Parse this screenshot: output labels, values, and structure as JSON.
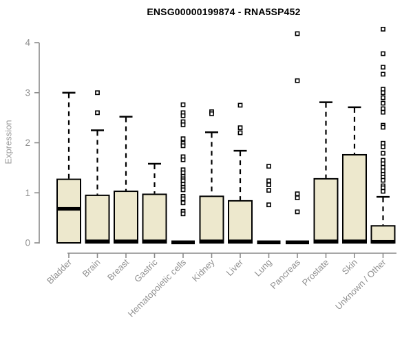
{
  "chart_data": {
    "type": "boxplot",
    "title": "ENSG00000199874 - RNA5SP452",
    "ylabel": "Expression",
    "xlabel": "",
    "ylim": [
      0,
      4.35
    ],
    "yticks": [
      0,
      1,
      2,
      3,
      4
    ],
    "grid": false,
    "legend": "none",
    "categories": [
      "Bladder",
      "Brain",
      "Breast",
      "Gastric",
      "Hematopoietic cells",
      "Kidney",
      "Liver",
      "Lung",
      "Pancreas",
      "Prostate",
      "Skin",
      "Unknown / Other"
    ],
    "boxes": [
      {
        "category": "Bladder",
        "q1": 0,
        "median": 0.68,
        "q3": 1.27,
        "whisker_low": 0,
        "whisker_high": 3.0,
        "outliers": []
      },
      {
        "category": "Brain",
        "q1": 0,
        "median": 0.03,
        "q3": 0.95,
        "whisker_low": 0,
        "whisker_high": 2.25,
        "outliers": [
          3.0,
          2.6
        ]
      },
      {
        "category": "Breast",
        "q1": 0,
        "median": 0.03,
        "q3": 1.03,
        "whisker_low": 0,
        "whisker_high": 2.52,
        "outliers": []
      },
      {
        "category": "Gastric",
        "q1": 0,
        "median": 0.03,
        "q3": 0.97,
        "whisker_low": 0,
        "whisker_high": 1.58,
        "outliers": []
      },
      {
        "category": "Hematopoietic cells",
        "q1": 0,
        "median": 0.01,
        "q3": 0.02,
        "whisker_low": 0,
        "whisker_high": 0.02,
        "outliers": [
          2.76,
          2.6,
          2.54,
          2.42,
          2.36,
          2.08,
          1.99,
          1.94,
          1.72,
          1.66,
          1.46,
          1.4,
          1.33,
          1.28,
          1.24,
          1.17,
          1.11,
          1.06,
          0.93,
          0.88,
          0.8,
          0.63,
          0.58
        ]
      },
      {
        "category": "Kidney",
        "q1": 0,
        "median": 0.03,
        "q3": 0.93,
        "whisker_low": 0,
        "whisker_high": 2.21,
        "outliers": [
          2.62,
          2.58
        ]
      },
      {
        "category": "Liver",
        "q1": 0,
        "median": 0.03,
        "q3": 0.84,
        "whisker_low": 0,
        "whisker_high": 1.84,
        "outliers": [
          2.75,
          2.3,
          2.2
        ]
      },
      {
        "category": "Lung",
        "q1": 0,
        "median": 0.01,
        "q3": 0.02,
        "whisker_low": 0,
        "whisker_high": 0.02,
        "outliers": [
          1.53,
          1.24,
          1.16,
          1.05,
          0.76
        ]
      },
      {
        "category": "Pancreas",
        "q1": 0,
        "median": 0.01,
        "q3": 0.02,
        "whisker_low": 0,
        "whisker_high": 0.02,
        "outliers": [
          4.18,
          3.24,
          0.98,
          0.9,
          0.62
        ]
      },
      {
        "category": "Prostate",
        "q1": 0,
        "median": 0.03,
        "q3": 1.28,
        "whisker_low": 0,
        "whisker_high": 2.81,
        "outliers": []
      },
      {
        "category": "Skin",
        "q1": 0,
        "median": 0.03,
        "q3": 1.76,
        "whisker_low": 0,
        "whisker_high": 2.71,
        "outliers": []
      },
      {
        "category": "Unknown / Other",
        "q1": 0,
        "median": 0.02,
        "q3": 0.34,
        "whisker_low": 0,
        "whisker_high": 0.92,
        "outliers": [
          4.27,
          3.78,
          3.51,
          3.37,
          3.07,
          3.0,
          2.9,
          2.79,
          2.68,
          2.61,
          2.35,
          2.31,
          1.99,
          1.92,
          1.79,
          1.65,
          1.58,
          1.51,
          1.44,
          1.37,
          1.31,
          1.25,
          1.14,
          1.1,
          1.03
        ]
      }
    ],
    "style": {
      "box_fill": "#EDE8CD",
      "box_stroke": "#000000",
      "median_color": "#000000",
      "whisker_color": "#000000",
      "outlier_marker": "open-square",
      "axis_color": "#8a8a8a",
      "tick_label_color": "#919191",
      "title_color": "#000000",
      "background": "#ffffff"
    }
  }
}
